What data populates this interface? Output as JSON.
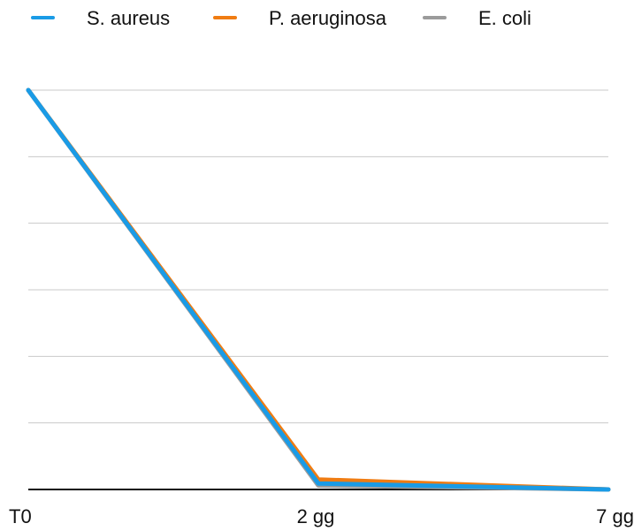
{
  "chart_data": {
    "type": "line",
    "categories": [
      "T0",
      "2 gg",
      "7 gg"
    ],
    "series": [
      {
        "name": "S. aureus",
        "color": "#1a9be6",
        "values": [
          100,
          1.5,
          0
        ]
      },
      {
        "name": "P. aeruginosa",
        "color": "#f07c12",
        "values": [
          100,
          2.5,
          0
        ]
      },
      {
        "name": "E. coli",
        "color": "#9b9b9b",
        "values": [
          100,
          1.0,
          0
        ]
      }
    ],
    "ylim": [
      0,
      100
    ],
    "grid": true,
    "legend_position": "top",
    "colors": {
      "grid": "#c9c9c9",
      "axis": "#111111"
    }
  }
}
